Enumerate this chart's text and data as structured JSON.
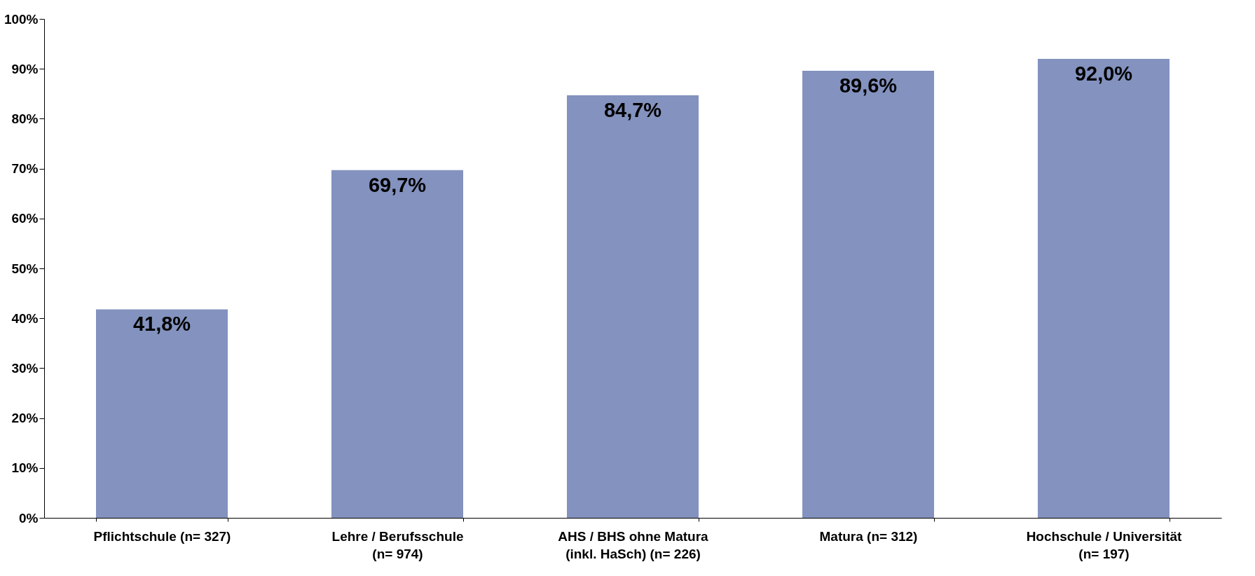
{
  "chart_data": {
    "type": "bar",
    "categories": [
      "Pflichtschule (n= 327)",
      "Lehre / Berufsschule\n(n= 974)",
      "AHS / BHS ohne Matura\n(inkl. HaSch) (n= 226)",
      "Matura (n= 312)",
      "Hochschule / Universität\n(n= 197)"
    ],
    "values": [
      41.8,
      69.7,
      84.7,
      89.6,
      92.0
    ],
    "value_labels": [
      "41,8%",
      "69,7%",
      "84,7%",
      "89,6%",
      "92,0%"
    ],
    "color": "#8392be",
    "ylim": [
      0,
      100
    ],
    "yticks": [
      {
        "value": 0,
        "label": "0%"
      },
      {
        "value": 10,
        "label": "10%"
      },
      {
        "value": 20,
        "label": "20%"
      },
      {
        "value": 30,
        "label": "30%"
      },
      {
        "value": 40,
        "label": "40%"
      },
      {
        "value": 50,
        "label": "50%"
      },
      {
        "value": 60,
        "label": "60%"
      },
      {
        "value": 70,
        "label": "70%"
      },
      {
        "value": 80,
        "label": "80%"
      },
      {
        "value": 90,
        "label": "90%"
      },
      {
        "value": 100,
        "label": "100%"
      }
    ]
  }
}
